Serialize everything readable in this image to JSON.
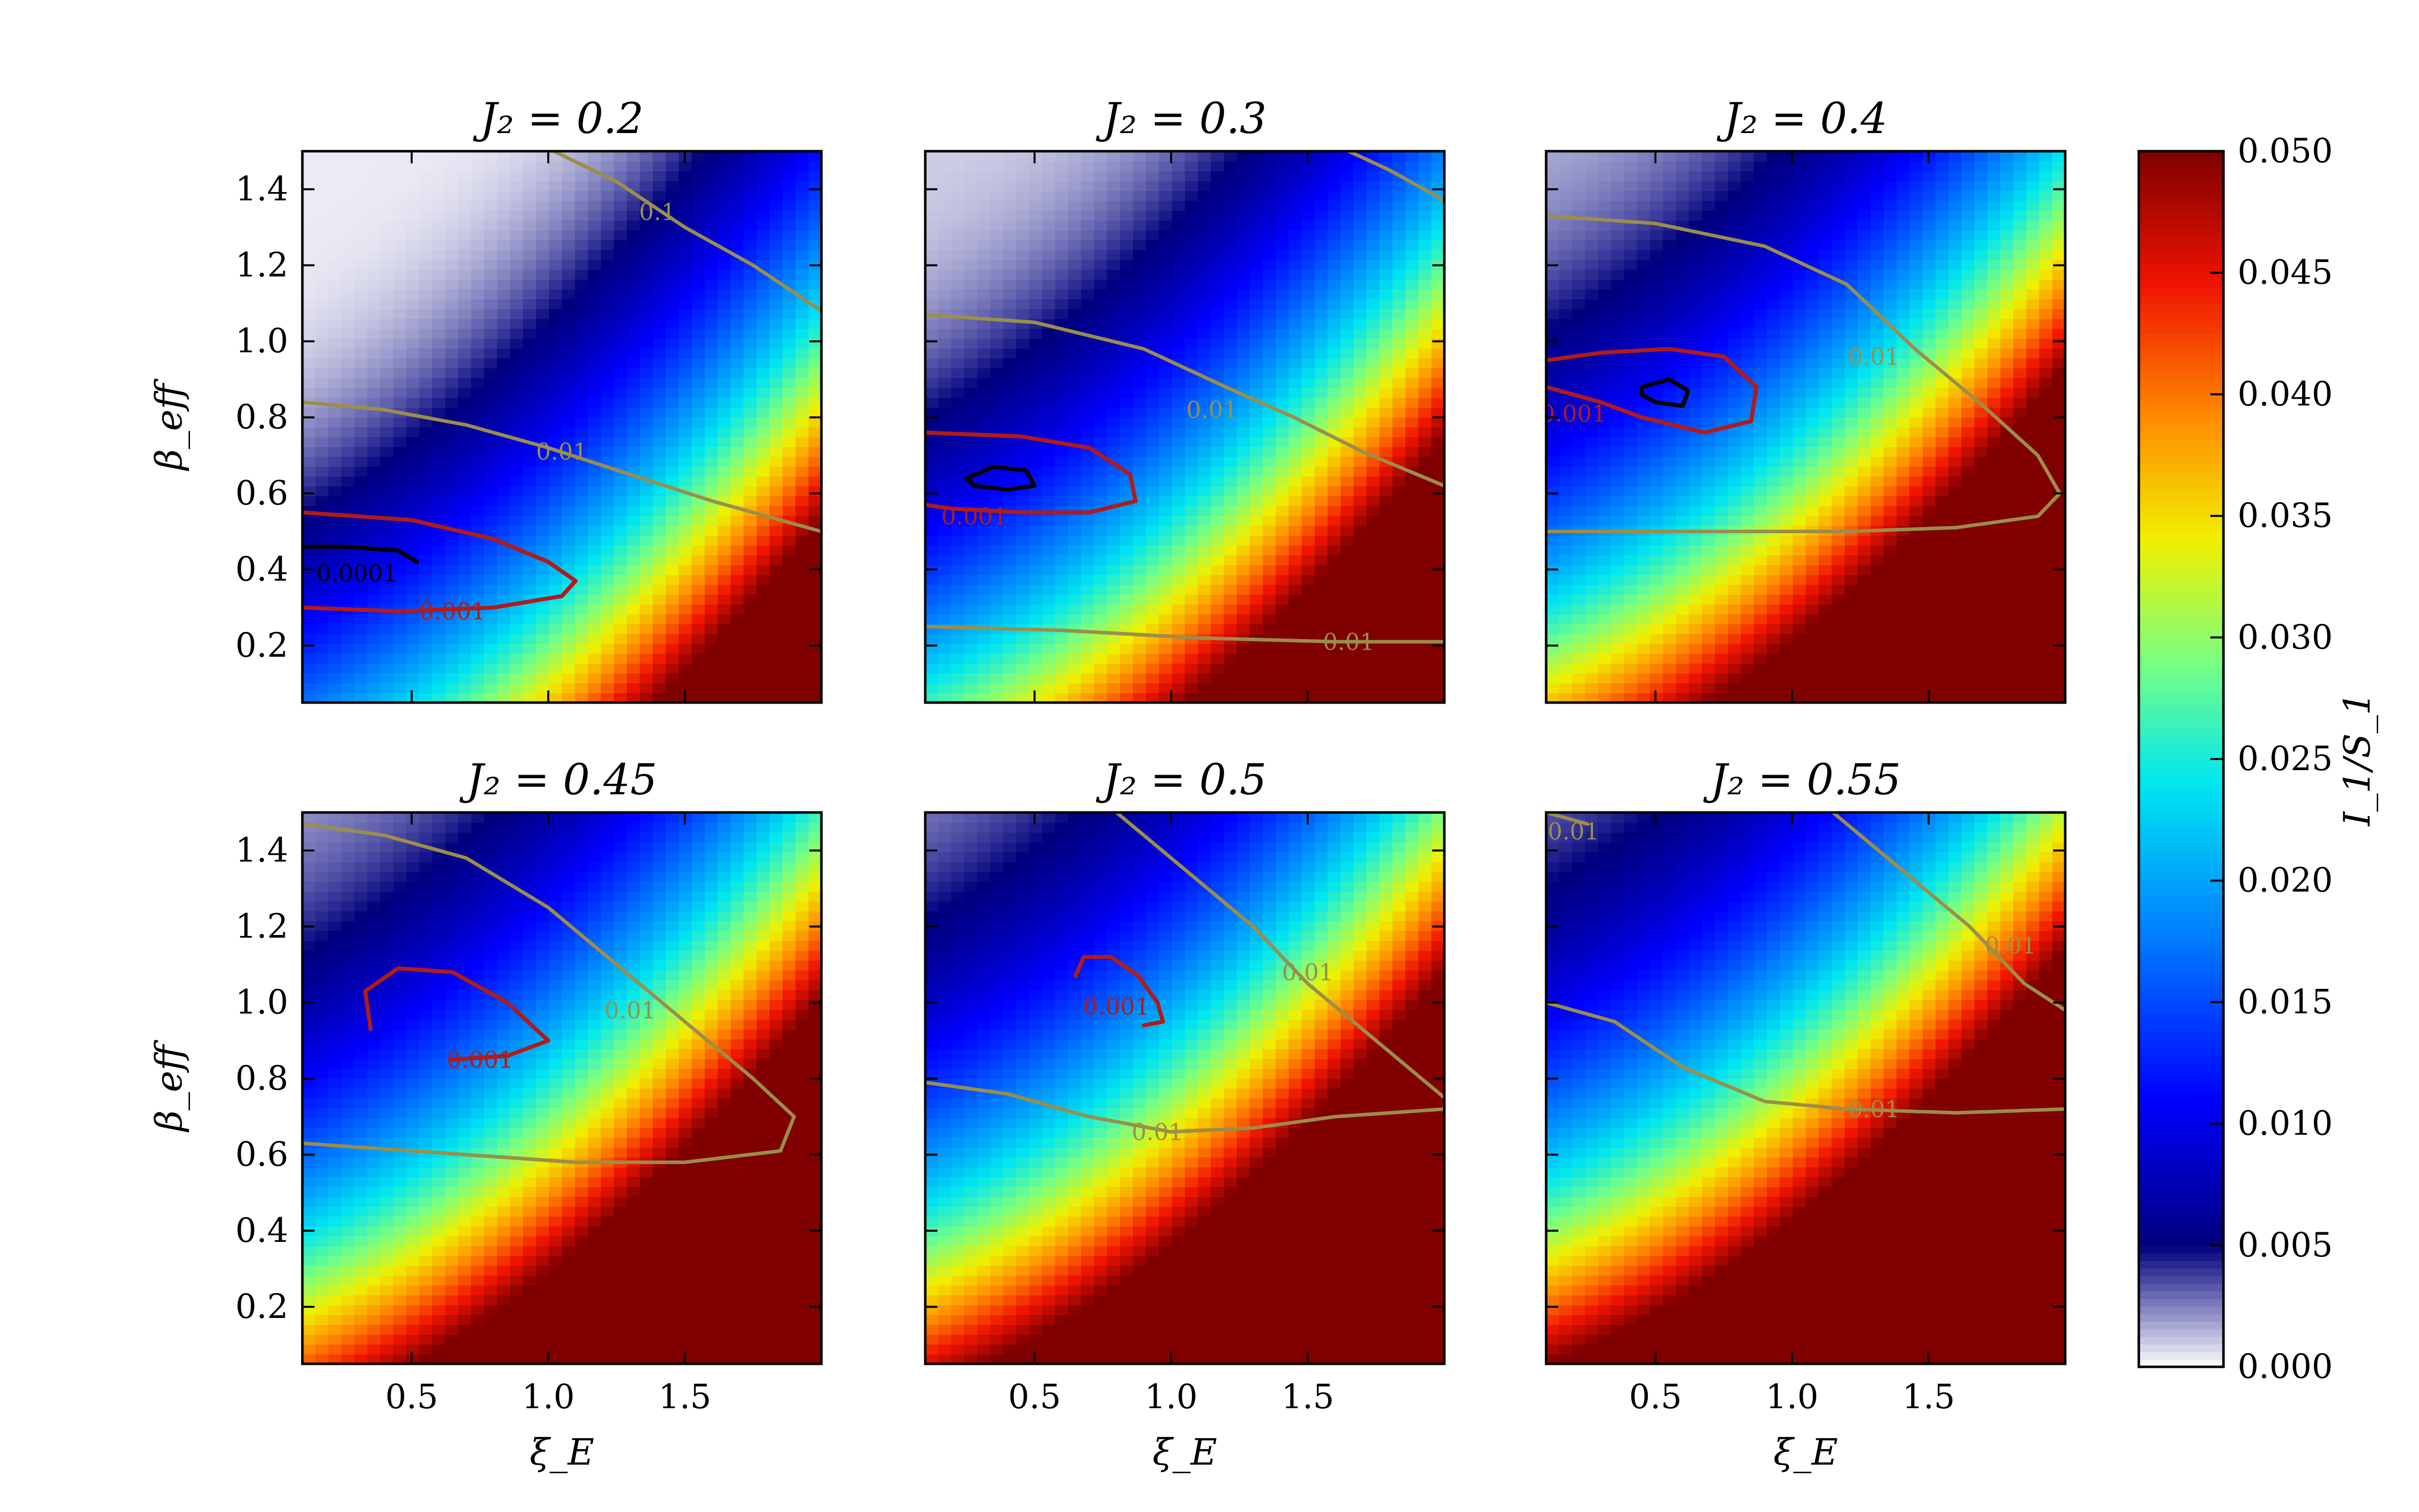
{
  "chart_data": {
    "type": "heatmap",
    "layout": "2x3 grid of panels sharing one colorbar",
    "colormap": "white at 0 → navy blue at 0.005 → blue → cyan → green → yellow → orange → red → dark red at 0.050",
    "x": {
      "label": "ξ_E",
      "range": [
        0.1,
        2.0
      ],
      "ticks": [
        0.5,
        1.0,
        1.5
      ],
      "tick_labels": [
        "0.5",
        "1.0",
        "1.5"
      ]
    },
    "y": {
      "label": "β_eff",
      "range": [
        0.05,
        1.5
      ],
      "ticks": [
        0.2,
        0.4,
        0.6,
        0.8,
        1.0,
        1.2,
        1.4
      ],
      "tick_labels": [
        "0.2",
        "0.4",
        "0.6",
        "0.8",
        "1.0",
        "1.2",
        "1.4"
      ]
    },
    "colorbar": {
      "label": "I_1/S_1",
      "range": [
        0.0,
        0.05
      ],
      "ticks": [
        0.0,
        0.005,
        0.01,
        0.015,
        0.02,
        0.025,
        0.03,
        0.035,
        0.04,
        0.045,
        0.05
      ],
      "tick_labels": [
        "0.000",
        "0.005",
        "0.010",
        "0.015",
        "0.020",
        "0.025",
        "0.030",
        "0.035",
        "0.040",
        "0.045",
        "0.050"
      ]
    },
    "contour_colors": {
      "0.1": "#9b8e4a",
      "0.01": "#9b8e4a",
      "0.001": "#b01b1b",
      "0.0001": "#000000"
    },
    "panels": [
      {
        "title": "J₂ = 0.2",
        "J2": 0.2,
        "min_location": [
          0.3,
          0.42
        ],
        "contours": [
          {
            "level": 0.1,
            "label": "0.1",
            "points": [
              [
                1.02,
                1.5
              ],
              [
                1.25,
                1.42
              ],
              [
                1.5,
                1.3
              ],
              [
                1.75,
                1.2
              ],
              [
                2.0,
                1.08
              ]
            ],
            "label_at": [
              1.4,
              1.34
            ]
          },
          {
            "level": 0.01,
            "label": "0.01",
            "points": [
              [
                0.1,
                0.84
              ],
              [
                0.4,
                0.82
              ],
              [
                0.7,
                0.78
              ],
              [
                1.0,
                0.72
              ],
              [
                1.3,
                0.65
              ],
              [
                1.6,
                0.58
              ],
              [
                2.0,
                0.5
              ]
            ],
            "label_at": [
              1.05,
              0.71
            ]
          },
          {
            "level": 0.001,
            "label": "0.001",
            "points": [
              [
                0.1,
                0.55
              ],
              [
                0.5,
                0.53
              ],
              [
                0.8,
                0.48
              ],
              [
                1.0,
                0.42
              ],
              [
                1.1,
                0.37
              ],
              [
                1.05,
                0.33
              ],
              [
                0.8,
                0.3
              ],
              [
                0.45,
                0.29
              ],
              [
                0.1,
                0.3
              ]
            ],
            "label_at": [
              0.65,
              0.29
            ]
          },
          {
            "level": 0.0001,
            "label": "0.0001",
            "points": [
              [
                0.1,
                0.46
              ],
              [
                0.25,
                0.46
              ],
              [
                0.45,
                0.45
              ],
              [
                0.52,
                0.42
              ]
            ],
            "label_at": [
              0.3,
              0.39
            ]
          }
        ]
      },
      {
        "title": "J₂ = 0.3",
        "J2": 0.3,
        "min_location": [
          0.4,
          0.63
        ],
        "contours": [
          {
            "level": 0.01,
            "label": "0.01",
            "points": [
              [
                1.65,
                1.5
              ],
              [
                1.8,
                1.45
              ],
              [
                2.0,
                1.37
              ]
            ],
            "label_at": null
          },
          {
            "level": 0.01,
            "label": "0.01",
            "points": [
              [
                0.1,
                1.07
              ],
              [
                0.5,
                1.05
              ],
              [
                0.9,
                0.98
              ],
              [
                1.2,
                0.88
              ],
              [
                1.45,
                0.8
              ],
              [
                1.7,
                0.71
              ],
              [
                2.0,
                0.62
              ]
            ],
            "label_at": [
              1.15,
              0.82
            ]
          },
          {
            "level": 0.01,
            "label": "0.01",
            "points": [
              [
                0.1,
                0.25
              ],
              [
                0.6,
                0.24
              ],
              [
                1.1,
                0.22
              ],
              [
                1.6,
                0.21
              ],
              [
                2.0,
                0.21
              ]
            ],
            "label_at": [
              1.65,
              0.21
            ]
          },
          {
            "level": 0.001,
            "label": "0.001",
            "points": [
              [
                0.1,
                0.76
              ],
              [
                0.45,
                0.75
              ],
              [
                0.7,
                0.72
              ],
              [
                0.85,
                0.65
              ],
              [
                0.87,
                0.58
              ],
              [
                0.7,
                0.55
              ],
              [
                0.45,
                0.55
              ],
              [
                0.2,
                0.56
              ],
              [
                0.1,
                0.57
              ]
            ],
            "label_at": [
              0.28,
              0.54
            ]
          },
          {
            "level": 0.0001,
            "label": "",
            "points": [
              [
                0.25,
                0.64
              ],
              [
                0.35,
                0.67
              ],
              [
                0.47,
                0.66
              ],
              [
                0.5,
                0.62
              ],
              [
                0.4,
                0.61
              ],
              [
                0.28,
                0.62
              ],
              [
                0.25,
                0.64
              ]
            ],
            "label_at": null
          }
        ]
      },
      {
        "title": "J₂ = 0.4",
        "J2": 0.4,
        "min_location": [
          0.52,
          0.86
        ],
        "contours": [
          {
            "level": 0.01,
            "label": "0.01",
            "points": [
              [
                0.1,
                1.33
              ],
              [
                0.5,
                1.31
              ],
              [
                0.9,
                1.25
              ],
              [
                1.2,
                1.15
              ],
              [
                1.45,
                0.98
              ],
              [
                1.7,
                0.83
              ],
              [
                1.9,
                0.7
              ],
              [
                1.98,
                0.6
              ],
              [
                1.9,
                0.54
              ],
              [
                1.6,
                0.51
              ],
              [
                1.2,
                0.5
              ],
              [
                0.7,
                0.5
              ],
              [
                0.1,
                0.5
              ]
            ],
            "label_at": [
              1.3,
              0.96
            ]
          },
          {
            "level": 0.001,
            "label": "0.001",
            "points": [
              [
                0.1,
                0.95
              ],
              [
                0.3,
                0.97
              ],
              [
                0.55,
                0.98
              ],
              [
                0.75,
                0.96
              ],
              [
                0.87,
                0.88
              ],
              [
                0.85,
                0.79
              ],
              [
                0.68,
                0.76
              ],
              [
                0.45,
                0.8
              ],
              [
                0.3,
                0.84
              ],
              [
                0.1,
                0.88
              ]
            ],
            "label_at": [
              0.2,
              0.81
            ]
          },
          {
            "level": 0.0001,
            "label": "",
            "points": [
              [
                0.45,
                0.88
              ],
              [
                0.55,
                0.9
              ],
              [
                0.62,
                0.87
              ],
              [
                0.6,
                0.83
              ],
              [
                0.5,
                0.84
              ],
              [
                0.45,
                0.86
              ],
              [
                0.45,
                0.88
              ]
            ],
            "label_at": null
          }
        ]
      },
      {
        "title": "J₂ = 0.45",
        "J2": 0.45,
        "min_location": [
          0.55,
          0.98
        ],
        "contours": [
          {
            "level": 0.01,
            "label": "0.01",
            "points": [
              [
                0.1,
                1.47
              ],
              [
                0.4,
                1.44
              ],
              [
                0.7,
                1.38
              ],
              [
                1.0,
                1.25
              ],
              [
                1.25,
                1.1
              ],
              [
                1.5,
                0.95
              ],
              [
                1.75,
                0.8
              ],
              [
                1.9,
                0.7
              ],
              [
                1.85,
                0.61
              ],
              [
                1.5,
                0.58
              ],
              [
                1.1,
                0.58
              ],
              [
                0.7,
                0.6
              ],
              [
                0.3,
                0.62
              ],
              [
                0.1,
                0.63
              ]
            ],
            "label_at": [
              1.3,
              0.98
            ]
          },
          {
            "level": 0.001,
            "label": "0.001",
            "points": [
              [
                0.35,
                0.93
              ],
              [
                0.33,
                1.03
              ],
              [
                0.45,
                1.09
              ],
              [
                0.65,
                1.08
              ],
              [
                0.85,
                1.0
              ],
              [
                1.0,
                0.9
              ],
              [
                0.85,
                0.86
              ],
              [
                0.65,
                0.85
              ]
            ],
            "label_at": [
              0.75,
              0.85
            ]
          }
        ]
      },
      {
        "title": "J₂ = 0.5",
        "J2": 0.5,
        "min_location": [
          0.85,
          1.05
        ],
        "contours": [
          {
            "level": 0.01,
            "label": "0.01",
            "points": [
              [
                0.8,
                1.5
              ],
              [
                1.05,
                1.35
              ],
              [
                1.3,
                1.2
              ],
              [
                1.5,
                1.05
              ],
              [
                1.75,
                0.9
              ],
              [
                2.0,
                0.75
              ]
            ],
            "label_at": [
              1.5,
              1.08
            ]
          },
          {
            "level": 0.01,
            "label": "0.01",
            "points": [
              [
                0.1,
                0.79
              ],
              [
                0.4,
                0.76
              ],
              [
                0.7,
                0.7
              ],
              [
                1.0,
                0.66
              ],
              [
                1.3,
                0.67
              ],
              [
                1.6,
                0.7
              ],
              [
                2.0,
                0.72
              ]
            ],
            "label_at": [
              0.95,
              0.66
            ]
          },
          {
            "level": 0.001,
            "label": "0.001",
            "points": [
              [
                0.65,
                1.07
              ],
              [
                0.68,
                1.12
              ],
              [
                0.78,
                1.12
              ],
              [
                0.88,
                1.07
              ],
              [
                0.95,
                1.0
              ],
              [
                0.97,
                0.95
              ],
              [
                0.9,
                0.94
              ]
            ],
            "label_at": [
              0.8,
              0.99
            ]
          }
        ]
      },
      {
        "title": "J₂ = 0.55",
        "J2": 0.55,
        "min_location": [
          1.1,
          1.15
        ],
        "contours": [
          {
            "level": 0.01,
            "label": "0.01",
            "points": [
              [
                0.1,
                1.5
              ],
              [
                0.25,
                1.47
              ]
            ],
            "label_at": [
              0.2,
              1.45
            ]
          },
          {
            "level": 0.01,
            "label": "0.01",
            "points": [
              [
                1.15,
                1.5
              ],
              [
                1.4,
                1.35
              ],
              [
                1.65,
                1.2
              ],
              [
                1.85,
                1.05
              ],
              [
                2.0,
                0.98
              ]
            ],
            "label_at": [
              1.8,
              1.15
            ]
          },
          {
            "level": 0.01,
            "label": "0.01",
            "points": [
              [
                0.1,
                1.0
              ],
              [
                0.35,
                0.95
              ],
              [
                0.6,
                0.83
              ],
              [
                0.9,
                0.74
              ],
              [
                1.2,
                0.72
              ],
              [
                1.6,
                0.71
              ],
              [
                2.0,
                0.72
              ]
            ],
            "label_at": [
              1.3,
              0.72
            ]
          }
        ]
      }
    ]
  }
}
